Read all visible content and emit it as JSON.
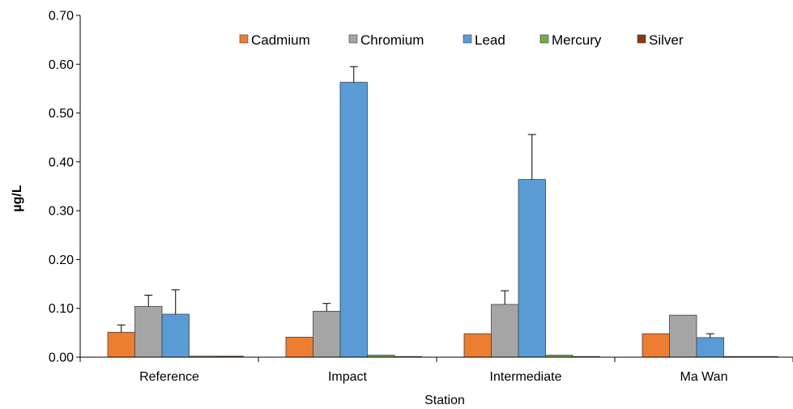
{
  "chart_data": {
    "type": "bar",
    "xlabel": "Station",
    "ylabel": "µg/L",
    "ylim": [
      0,
      0.7
    ],
    "yticks": [
      "0.00",
      "0.10",
      "0.20",
      "0.30",
      "0.40",
      "0.50",
      "0.60",
      "0.70"
    ],
    "categories": [
      "Reference",
      "Impact",
      "Intermediate",
      "Ma Wan"
    ],
    "legend_position": "top",
    "grid": false,
    "error_bars": true,
    "series": [
      {
        "name": "Cadmium",
        "color": "#ed7d31",
        "values": [
          0.051,
          0.041,
          0.048,
          0.048
        ],
        "errors": [
          0.015,
          0.0,
          0.0,
          0.0
        ]
      },
      {
        "name": "Chromium",
        "color": "#a5a5a5",
        "values": [
          0.104,
          0.094,
          0.108,
          0.086
        ],
        "errors": [
          0.023,
          0.016,
          0.028,
          0.0
        ]
      },
      {
        "name": "Lead",
        "color": "#5b9bd5",
        "values": [
          0.088,
          0.563,
          0.364,
          0.04
        ],
        "errors": [
          0.05,
          0.032,
          0.092,
          0.008
        ]
      },
      {
        "name": "Mercury",
        "color": "#70ad47",
        "values": [
          0.002,
          0.004,
          0.004,
          0.001
        ],
        "errors": [
          0,
          0,
          0,
          0
        ]
      },
      {
        "name": "Silver",
        "color": "#843c0c",
        "values": [
          0.002,
          0.001,
          0.001,
          0.001
        ],
        "errors": [
          0,
          0,
          0,
          0
        ]
      }
    ]
  }
}
